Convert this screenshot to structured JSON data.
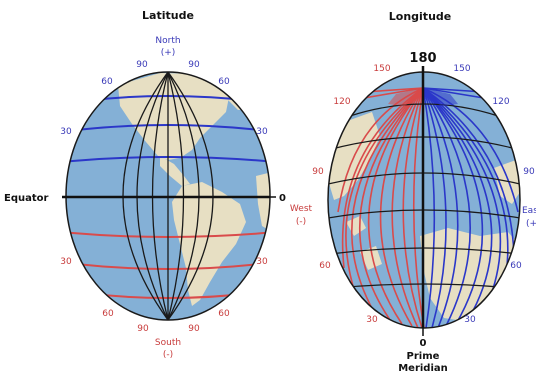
{
  "colors": {
    "ocean": "#84b0d6",
    "land": "#e7dfc3",
    "north_lines": "#2b37c9",
    "south_lines": "#d94b4b",
    "grid": "#1a1a1a",
    "label_blue": "#3a3ab8",
    "label_red": "#c83c3c"
  },
  "latitude": {
    "title": "Latitude",
    "north_label": "North",
    "north_sign": "(+)",
    "south_label": "South",
    "south_sign": "(-)",
    "equator_label": "Equator",
    "equator_value": "0",
    "north_top_left": "90",
    "north_top_right": "90",
    "north_60_left": "60",
    "north_60_right": "60",
    "north_30_left": "30",
    "north_30_right": "30",
    "south_30_left": "30",
    "south_30_right": "30",
    "south_60_left": "60",
    "south_60_right": "60",
    "south_bottom_left": "90",
    "south_bottom_right": "90"
  },
  "longitude": {
    "title": "Longitude",
    "top_value": "180",
    "west_150": "150",
    "east_150": "150",
    "west_120": "120",
    "east_120": "120",
    "west_90": "90",
    "east_90": "90",
    "west_60": "60",
    "east_60": "60",
    "west_30": "30",
    "east_30": "30",
    "west_label": "West",
    "west_sign": "(-)",
    "east_label": "Eas",
    "east_sign": "(+",
    "bottom_value": "0",
    "prime_label": "Prime",
    "meridian_label": "Meridian"
  }
}
